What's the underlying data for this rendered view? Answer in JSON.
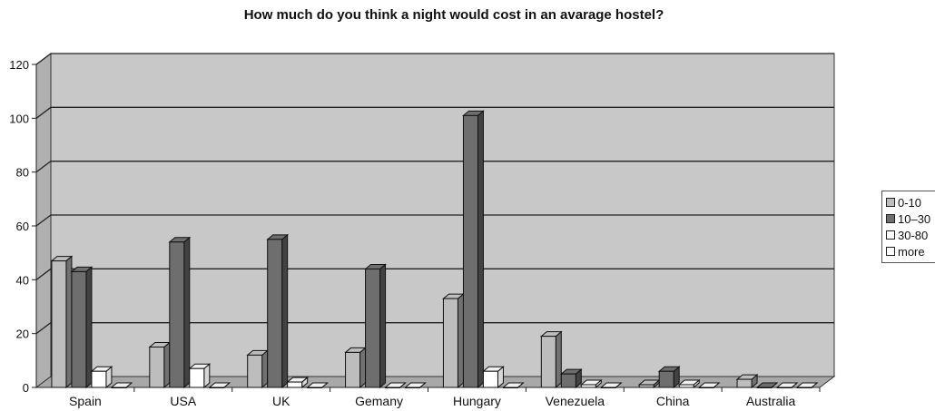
{
  "chart_data": {
    "type": "bar",
    "title": "How much do you think a night would cost in an avarage hostel?",
    "categories": [
      "Spain",
      "USA",
      "UK",
      "Gemany",
      "Hungary",
      "Venezuela",
      "China",
      "Australia"
    ],
    "series": [
      {
        "name": "0-10",
        "color": "#bdbdbd",
        "values": [
          47,
          15,
          12,
          13,
          33,
          19,
          1,
          3
        ]
      },
      {
        "name": "10–30",
        "color": "#6e6e6e",
        "values": [
          43,
          54,
          55,
          44,
          101,
          5,
          6,
          0
        ]
      },
      {
        "name": "30-80",
        "color": "#ffffff",
        "values": [
          6,
          7,
          2,
          0,
          6,
          1,
          1,
          0
        ]
      },
      {
        "name": "more",
        "color": "#ffffff",
        "values": [
          0,
          0,
          0,
          0,
          0,
          0,
          0,
          0
        ]
      }
    ],
    "y_ticks": [
      "0",
      "20",
      "40",
      "60",
      "80",
      "100",
      "120"
    ],
    "ylim": [
      0,
      120
    ],
    "grid": true,
    "legend_position": "right",
    "plot_background": "#c8c8c8"
  }
}
